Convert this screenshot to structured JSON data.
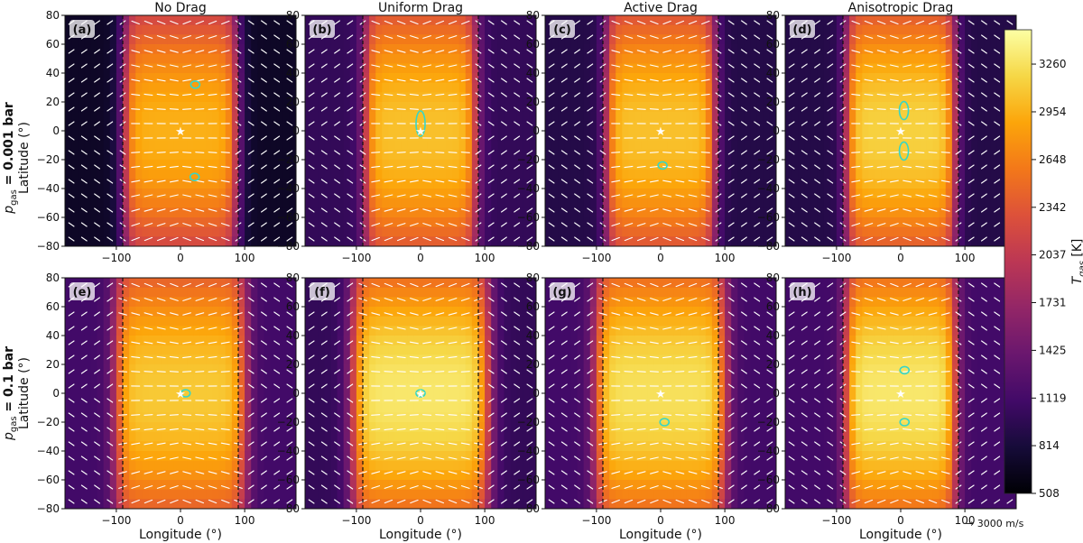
{
  "figure": {
    "quiver_key_label": "→ 3000 m/s",
    "colorbar": {
      "label_main": "T",
      "label_sub": "gas",
      "label_unit": " [K]",
      "ticks": [
        508,
        814,
        1119,
        1425,
        1731,
        2037,
        2342,
        2648,
        2954,
        3260
      ],
      "range": [
        508,
        3480
      ],
      "colormap": "inferno"
    },
    "rows": [
      {
        "label_prefix": "p",
        "label_sub": "gas",
        "label_value": " = 0.001 bar",
        "ylabel": "Latitude (°)"
      },
      {
        "label_prefix": "p",
        "label_sub": "gas",
        "label_value": " = 0.1 bar",
        "ylabel": "Latitude (°)"
      }
    ],
    "column_titles": [
      "No Drag",
      "Uniform Drag",
      "Active Drag",
      "Anisotropic Drag"
    ],
    "xlabel": "Longitude (°)"
  },
  "chart_data": [
    {
      "type": "heatmap",
      "panel": "(a)",
      "title": "No Drag",
      "row": "p_gas = 0.001 bar",
      "xlabel": "",
      "ylabel": "Latitude (°)",
      "xlim": [
        -180,
        180
      ],
      "ylim": [
        -80,
        80
      ],
      "xticks": [
        -100,
        0,
        100
      ],
      "yticks": [
        -80,
        -60,
        -40,
        -20,
        0,
        20,
        40,
        60,
        80
      ],
      "hot_center_lon": 0,
      "hot_halfwidth_lon": 88,
      "night_T": 700,
      "day_T": 2950,
      "substellar_marker": [
        0,
        0
      ],
      "terminators": [
        -90,
        90
      ],
      "contours": [
        [
          23,
          32
        ],
        [
          22,
          -32
        ]
      ]
    },
    {
      "type": "heatmap",
      "panel": "(b)",
      "title": "Uniform Drag",
      "row": "p_gas = 0.001 bar",
      "xlabel": "",
      "ylabel": "",
      "xlim": [
        -180,
        180
      ],
      "ylim": [
        -80,
        80
      ],
      "xticks": [
        -100,
        0,
        100
      ],
      "yticks": [
        -80,
        -60,
        -40,
        -20,
        0,
        20,
        40,
        60,
        80
      ],
      "hot_center_lon": 0,
      "hot_halfwidth_lon": 86,
      "night_T": 1000,
      "day_T": 3050,
      "substellar_marker": [
        0,
        0
      ],
      "terminators": [
        -90,
        90
      ],
      "contours": [
        [
          0,
          5
        ]
      ]
    },
    {
      "type": "heatmap",
      "panel": "(c)",
      "title": "Active Drag",
      "row": "p_gas = 0.001 bar",
      "xlabel": "",
      "ylabel": "",
      "xlim": [
        -180,
        180
      ],
      "ylim": [
        -80,
        80
      ],
      "xticks": [
        -100,
        0,
        100
      ],
      "yticks": [
        -80,
        -60,
        -40,
        -20,
        0,
        20,
        40,
        60,
        80
      ],
      "hot_center_lon": 0,
      "hot_halfwidth_lon": 84,
      "night_T": 900,
      "day_T": 3050,
      "substellar_marker": [
        0,
        0
      ],
      "terminators": [
        -90,
        90
      ],
      "contours": [
        [
          3,
          -24
        ]
      ]
    },
    {
      "type": "heatmap",
      "panel": "(d)",
      "title": "Anisotropic Drag",
      "row": "p_gas = 0.001 bar",
      "xlabel": "",
      "ylabel": "",
      "xlim": [
        -180,
        180
      ],
      "ylim": [
        -80,
        80
      ],
      "xticks": [
        -100,
        0,
        100
      ],
      "yticks": [
        -80,
        -60,
        -40,
        -20,
        0,
        20,
        40,
        60,
        80
      ],
      "hot_center_lon": 0,
      "hot_halfwidth_lon": 84,
      "night_T": 900,
      "day_T": 3150,
      "substellar_marker": [
        0,
        0
      ],
      "terminators": [
        -90,
        90
      ],
      "contours": [
        [
          5,
          14
        ],
        [
          5,
          -14
        ]
      ]
    },
    {
      "type": "heatmap",
      "panel": "(e)",
      "title": "",
      "row": "p_gas = 0.1 bar",
      "xlabel": "Longitude (°)",
      "ylabel": "Latitude (°)",
      "xlim": [
        -180,
        180
      ],
      "ylim": [
        -80,
        80
      ],
      "xticks": [
        -100,
        0,
        100
      ],
      "yticks": [
        -80,
        -60,
        -40,
        -20,
        0,
        20,
        40,
        60,
        80
      ],
      "hot_center_lon": 0,
      "hot_halfwidth_lon": 100,
      "night_T": 1100,
      "day_T": 3100,
      "substellar_marker": [
        0,
        0
      ],
      "terminators": [
        -90,
        90
      ],
      "contours": [
        [
          8,
          0
        ]
      ]
    },
    {
      "type": "heatmap",
      "panel": "(f)",
      "title": "",
      "row": "p_gas = 0.1 bar",
      "xlabel": "Longitude (°)",
      "ylabel": "",
      "xlim": [
        -180,
        180
      ],
      "ylim": [
        -80,
        80
      ],
      "xticks": [
        -100,
        0,
        100
      ],
      "yticks": [
        -80,
        -60,
        -40,
        -20,
        0,
        20,
        40,
        60,
        80
      ],
      "hot_center_lon": 0,
      "hot_halfwidth_lon": 105,
      "night_T": 1000,
      "day_T": 3300,
      "substellar_marker": [
        0,
        0
      ],
      "terminators": [
        -90,
        90
      ],
      "contours": [
        [
          0,
          0
        ]
      ]
    },
    {
      "type": "heatmap",
      "panel": "(g)",
      "title": "",
      "row": "p_gas = 0.1 bar",
      "xlabel": "Longitude (°)",
      "ylabel": "",
      "xlim": [
        -180,
        180
      ],
      "ylim": [
        -80,
        80
      ],
      "xticks": [
        -100,
        0,
        100
      ],
      "yticks": [
        -80,
        -60,
        -40,
        -20,
        0,
        20,
        40,
        60,
        80
      ],
      "hot_center_lon": 0,
      "hot_halfwidth_lon": 100,
      "night_T": 1100,
      "day_T": 3250,
      "substellar_marker": [
        0,
        0
      ],
      "terminators": [
        -90,
        90
      ],
      "contours": [
        [
          6,
          -20
        ]
      ]
    },
    {
      "type": "heatmap",
      "panel": "(h)",
      "title": "",
      "row": "p_gas = 0.1 bar",
      "xlabel": "Longitude (°)",
      "ylabel": "",
      "xlim": [
        -180,
        180
      ],
      "ylim": [
        -80,
        80
      ],
      "xticks": [
        -100,
        0,
        100
      ],
      "yticks": [
        -80,
        -60,
        -40,
        -20,
        0,
        20,
        40,
        60,
        80
      ],
      "hot_center_lon": 0,
      "hot_halfwidth_lon": 85,
      "night_T": 1100,
      "day_T": 3300,
      "substellar_marker": [
        0,
        0
      ],
      "terminators": [
        -90,
        90
      ],
      "contours": [
        [
          6,
          16
        ],
        [
          6,
          -20
        ]
      ]
    }
  ]
}
